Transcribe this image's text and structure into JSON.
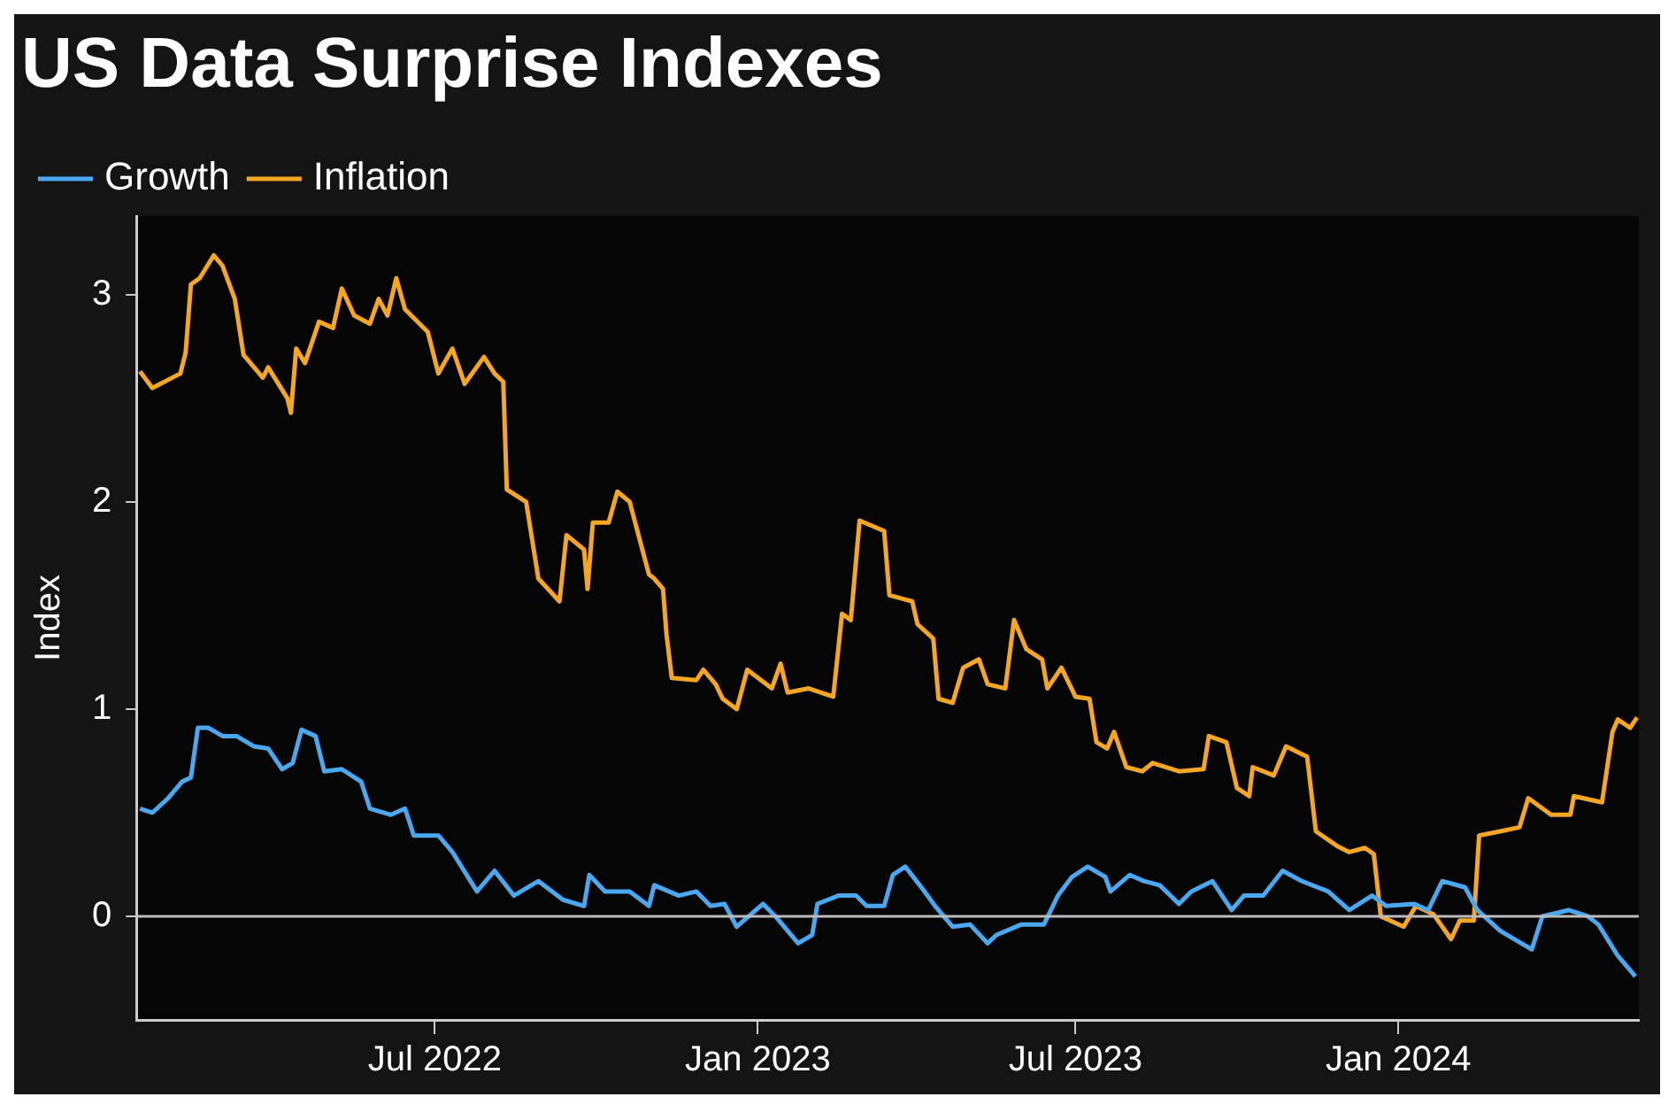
{
  "chart_data": {
    "type": "line",
    "title": "US Data Surprise Indexes",
    "ylabel": "Index",
    "legend": "top left",
    "xlim": [
      "2022-01-12",
      "2024-05-17"
    ],
    "ylim": [
      -0.5,
      3.38
    ],
    "yticks": [
      0,
      1,
      2,
      3
    ],
    "xticks": [
      {
        "value": "2022-07-01",
        "label": "Jul 2022"
      },
      {
        "value": "2023-01-01",
        "label": "Jan 2023"
      },
      {
        "value": "2023-07-01",
        "label": "Jul 2023"
      },
      {
        "value": "2024-01-01",
        "label": "Jan 2024"
      }
    ],
    "ref_lines": [
      {
        "axis": "y",
        "value": 0,
        "color": "#bbbbbb"
      }
    ],
    "series": [
      {
        "name": "Growth",
        "color": "#4aa8f0",
        "x": [
          "2022-01-14",
          "2022-01-21",
          "2022-01-30",
          "2022-02-07",
          "2022-02-12",
          "2022-02-16",
          "2022-02-22",
          "2022-03-02",
          "2022-03-10",
          "2022-03-20",
          "2022-03-28",
          "2022-04-05",
          "2022-04-11",
          "2022-04-16",
          "2022-04-24",
          "2022-04-29",
          "2022-05-09",
          "2022-05-20",
          "2022-05-25",
          "2022-06-06",
          "2022-06-14",
          "2022-06-19",
          "2022-07-03",
          "2022-07-11",
          "2022-07-25",
          "2022-08-04",
          "2022-08-15",
          "2022-08-29",
          "2022-09-12",
          "2022-09-24",
          "2022-09-27",
          "2022-10-06",
          "2022-10-20",
          "2022-10-31",
          "2022-11-03",
          "2022-11-17",
          "2022-11-27",
          "2022-12-05",
          "2022-12-13",
          "2022-12-20",
          "2023-01-04",
          "2023-01-11",
          "2023-01-24",
          "2023-02-01",
          "2023-02-04",
          "2023-02-16",
          "2023-02-26",
          "2023-03-04",
          "2023-03-14",
          "2023-03-19",
          "2023-03-26",
          "2023-04-06",
          "2023-04-12",
          "2023-04-22",
          "2023-05-02",
          "2023-05-12",
          "2023-05-17",
          "2023-05-31",
          "2023-06-13",
          "2023-06-21",
          "2023-06-29",
          "2023-07-08",
          "2023-07-18",
          "2023-07-21",
          "2023-08-01",
          "2023-08-09",
          "2023-08-18",
          "2023-08-29",
          "2023-09-05",
          "2023-09-17",
          "2023-09-28",
          "2023-10-05",
          "2023-10-16",
          "2023-10-27",
          "2023-11-07",
          "2023-11-22",
          "2023-12-04",
          "2023-12-17",
          "2023-12-25",
          "2024-01-10",
          "2024-01-18",
          "2024-01-26",
          "2024-02-08",
          "2024-02-15",
          "2024-02-28",
          "2024-03-17",
          "2024-03-23",
          "2024-04-07",
          "2024-04-18",
          "2024-04-24",
          "2024-05-05",
          "2024-05-15"
        ],
        "values": [
          0.52,
          0.5,
          0.57,
          0.65,
          0.67,
          0.91,
          0.91,
          0.87,
          0.87,
          0.82,
          0.81,
          0.71,
          0.74,
          0.9,
          0.87,
          0.7,
          0.71,
          0.65,
          0.52,
          0.49,
          0.52,
          0.39,
          0.39,
          0.31,
          0.12,
          0.22,
          0.1,
          0.17,
          0.08,
          0.05,
          0.2,
          0.12,
          0.12,
          0.05,
          0.15,
          0.1,
          0.12,
          0.05,
          0.06,
          -0.05,
          0.06,
          0,
          -0.13,
          -0.09,
          0.06,
          0.1,
          0.1,
          0.05,
          0.05,
          0.2,
          0.24,
          0.12,
          0.05,
          -0.05,
          -0.04,
          -0.13,
          -0.09,
          -0.04,
          -0.04,
          0.1,
          0.19,
          0.24,
          0.19,
          0.12,
          0.2,
          0.17,
          0.15,
          0.06,
          0.12,
          0.17,
          0.03,
          0.1,
          0.1,
          0.22,
          0.17,
          0.12,
          0.03,
          0.1,
          0.05,
          0.06,
          0.03,
          0.17,
          0.14,
          0.03,
          -0.07,
          -0.16,
          0,
          0.03,
          0,
          -0.04,
          -0.19,
          -0.29
        ]
      },
      {
        "name": "Inflation",
        "color": "#f5a623",
        "x": [
          "2022-01-14",
          "2022-01-21",
          "2022-02-06",
          "2022-02-09",
          "2022-02-12",
          "2022-02-17",
          "2022-02-25",
          "2022-03-02",
          "2022-03-09",
          "2022-03-14",
          "2022-03-25",
          "2022-03-28",
          "2022-04-08",
          "2022-04-10",
          "2022-04-13",
          "2022-04-18",
          "2022-04-26",
          "2022-05-04",
          "2022-05-09",
          "2022-05-16",
          "2022-05-25",
          "2022-05-30",
          "2022-06-04",
          "2022-06-09",
          "2022-06-14",
          "2022-06-27",
          "2022-07-03",
          "2022-07-11",
          "2022-07-18",
          "2022-07-29",
          "2022-08-04",
          "2022-08-09",
          "2022-08-11",
          "2022-08-22",
          "2022-08-29",
          "2022-09-10",
          "2022-09-14",
          "2022-09-24",
          "2022-09-26",
          "2022-09-29",
          "2022-10-08",
          "2022-10-13",
          "2022-10-20",
          "2022-10-31",
          "2022-11-03",
          "2022-11-08",
          "2022-11-10",
          "2022-11-13",
          "2022-11-27",
          "2022-12-01",
          "2022-12-08",
          "2022-12-12",
          "2022-12-20",
          "2022-12-26",
          "2023-01-09",
          "2023-01-14",
          "2023-01-18",
          "2023-01-30",
          "2023-02-13",
          "2023-02-18",
          "2023-02-23",
          "2023-02-28",
          "2023-03-14",
          "2023-03-17",
          "2023-03-30",
          "2023-04-02",
          "2023-04-11",
          "2023-04-14",
          "2023-04-22",
          "2023-04-28",
          "2023-05-07",
          "2023-05-12",
          "2023-05-22",
          "2023-05-27",
          "2023-06-03",
          "2023-06-12",
          "2023-06-15",
          "2023-06-23",
          "2023-07-01",
          "2023-07-09",
          "2023-07-13",
          "2023-07-19",
          "2023-07-23",
          "2023-07-30",
          "2023-08-08",
          "2023-08-14",
          "2023-08-29",
          "2023-09-12",
          "2023-09-15",
          "2023-09-25",
          "2023-10-01",
          "2023-10-08",
          "2023-10-10",
          "2023-10-22",
          "2023-10-29",
          "2023-11-10",
          "2023-11-15",
          "2023-11-27",
          "2023-12-04",
          "2023-12-13",
          "2023-12-18",
          "2023-12-22",
          "2024-01-04",
          "2024-01-11",
          "2024-01-21",
          "2024-01-31",
          "2024-02-05",
          "2024-02-13",
          "2024-02-16",
          "2024-02-28",
          "2024-03-10",
          "2024-03-15",
          "2024-03-28",
          "2024-04-08",
          "2024-04-10",
          "2024-04-26",
          "2024-05-02",
          "2024-05-05",
          "2024-05-12",
          "2024-05-16"
        ],
        "values": [
          2.63,
          2.55,
          2.62,
          2.72,
          3.05,
          3.08,
          3.19,
          3.14,
          2.98,
          2.71,
          2.6,
          2.65,
          2.5,
          2.43,
          2.74,
          2.67,
          2.87,
          2.84,
          3.03,
          2.9,
          2.86,
          2.98,
          2.9,
          3.08,
          2.93,
          2.82,
          2.62,
          2.74,
          2.57,
          2.7,
          2.62,
          2.58,
          2.06,
          2.0,
          1.63,
          1.52,
          1.84,
          1.77,
          1.58,
          1.9,
          1.9,
          2.05,
          2.0,
          1.65,
          1.63,
          1.58,
          1.36,
          1.15,
          1.14,
          1.19,
          1.12,
          1.05,
          1.0,
          1.19,
          1.1,
          1.22,
          1.08,
          1.1,
          1.06,
          1.46,
          1.43,
          1.91,
          1.86,
          1.55,
          1.52,
          1.41,
          1.34,
          1.05,
          1.03,
          1.2,
          1.24,
          1.12,
          1.1,
          1.43,
          1.29,
          1.24,
          1.1,
          1.2,
          1.06,
          1.05,
          0.84,
          0.81,
          0.89,
          0.72,
          0.7,
          0.74,
          0.7,
          0.71,
          0.87,
          0.84,
          0.62,
          0.58,
          0.72,
          0.68,
          0.82,
          0.77,
          0.41,
          0.34,
          0.31,
          0.33,
          0.3,
          0.0,
          -0.05,
          0.05,
          0.01,
          -0.11,
          -0.02,
          -0.02,
          0.39,
          0.41,
          0.43,
          0.57,
          0.49,
          0.49,
          0.58,
          0.55,
          0.89,
          0.95,
          0.91,
          0.96
        ]
      }
    ]
  }
}
